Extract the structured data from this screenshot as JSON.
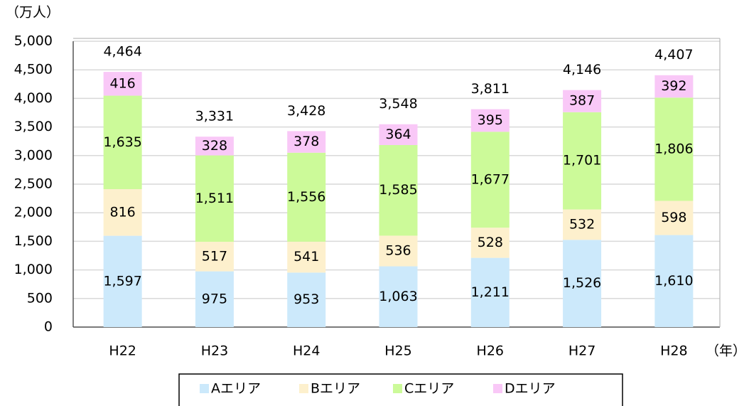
{
  "chart_data": {
    "type": "stacked-bar",
    "y_unit": "（万人）",
    "x_unit": "（年）",
    "categories": [
      "H22",
      "H23",
      "H24",
      "H25",
      "H26",
      "H27",
      "H28"
    ],
    "series": [
      {
        "name": "Aエリア",
        "color": "#cce9fb",
        "values": [
          1597,
          975,
          953,
          1063,
          1211,
          1526,
          1610
        ],
        "value_labels": [
          "1,597",
          "975",
          "953",
          "1,063",
          "1,211",
          "1,526",
          "1,610"
        ]
      },
      {
        "name": "Bエリア",
        "color": "#fdf0cd",
        "values": [
          816,
          517,
          541,
          536,
          528,
          532,
          598
        ]
      },
      {
        "name": "Cエリア",
        "color": "#ccfa99",
        "values": [
          1635,
          1511,
          1556,
          1585,
          1677,
          1701,
          1806
        ],
        "value_labels": [
          "1,635",
          "1,511",
          "1,556",
          "1,585",
          "1,677",
          "1,701",
          "1,806"
        ]
      },
      {
        "name": "Dエリア",
        "color": "#f9c8f7",
        "values": [
          416,
          328,
          378,
          364,
          395,
          387,
          392
        ]
      }
    ],
    "totals": [
      4464,
      3331,
      3428,
      3548,
      3811,
      4146,
      4407
    ],
    "total_labels": [
      "4,464",
      "3,331",
      "3,428",
      "3,548",
      "3,811",
      "4,146",
      "4,407"
    ],
    "ylim": [
      0,
      5000
    ],
    "yticks": [
      0,
      500,
      {
        "value": 1000,
        "label": "1,000"
      },
      {
        "value": 1500,
        "label": "1,500"
      },
      {
        "value": 2000,
        "label": "2,000"
      },
      {
        "value": 2500,
        "label": "2,500"
      },
      {
        "value": 3000,
        "label": "3,000"
      },
      {
        "value": 3500,
        "label": "3,500"
      },
      {
        "value": 4000,
        "label": "4,000"
      },
      {
        "value": 4500,
        "label": "4,500"
      },
      {
        "value": 5000,
        "label": "5,000"
      }
    ],
    "grid": true
  }
}
